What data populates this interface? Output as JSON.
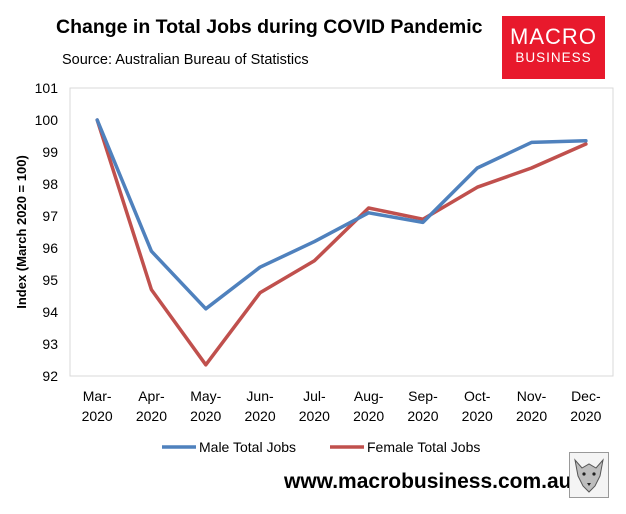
{
  "header": {
    "title": "Change in Total Jobs during COVID Pandemic",
    "subtitle": "Source: Australian Bureau of Statistics"
  },
  "logo": {
    "line1": "MACRO",
    "line2": "BUSINESS",
    "color": "#e8192c"
  },
  "footer": {
    "website": "www.macrobusiness.com.au"
  },
  "mascot": {
    "icon": "wolf-logo-icon"
  },
  "chart_data": {
    "type": "line",
    "title": "Change in Total Jobs during COVID Pandemic",
    "ylabel": "Index (March 2020 = 100)",
    "xlabel": "",
    "ylim": [
      92,
      101
    ],
    "yticks": [
      "92",
      "93",
      "94",
      "95",
      "96",
      "97",
      "98",
      "99",
      "100",
      "101"
    ],
    "categories": [
      {
        "month": "Mar-",
        "year": "2020"
      },
      {
        "month": "Apr-",
        "year": "2020"
      },
      {
        "month": "May-",
        "year": "2020"
      },
      {
        "month": "Jun-",
        "year": "2020"
      },
      {
        "month": "Jul-",
        "year": "2020"
      },
      {
        "month": "Aug-",
        "year": "2020"
      },
      {
        "month": "Sep-",
        "year": "2020"
      },
      {
        "month": "Oct-",
        "year": "2020"
      },
      {
        "month": "Nov-",
        "year": "2020"
      },
      {
        "month": "Dec-",
        "year": "2020"
      }
    ],
    "series": [
      {
        "name": "Male Total Jobs",
        "color": "#4f81bd",
        "values": [
          100.0,
          95.9,
          94.1,
          95.4,
          96.2,
          97.1,
          96.8,
          98.5,
          99.3,
          99.35
        ]
      },
      {
        "name": "Female Total Jobs",
        "color": "#c0504d",
        "values": [
          100.0,
          94.7,
          92.35,
          94.6,
          95.6,
          97.25,
          96.9,
          97.9,
          98.5,
          99.25
        ]
      }
    ],
    "grid": false,
    "legend": "bottom"
  }
}
